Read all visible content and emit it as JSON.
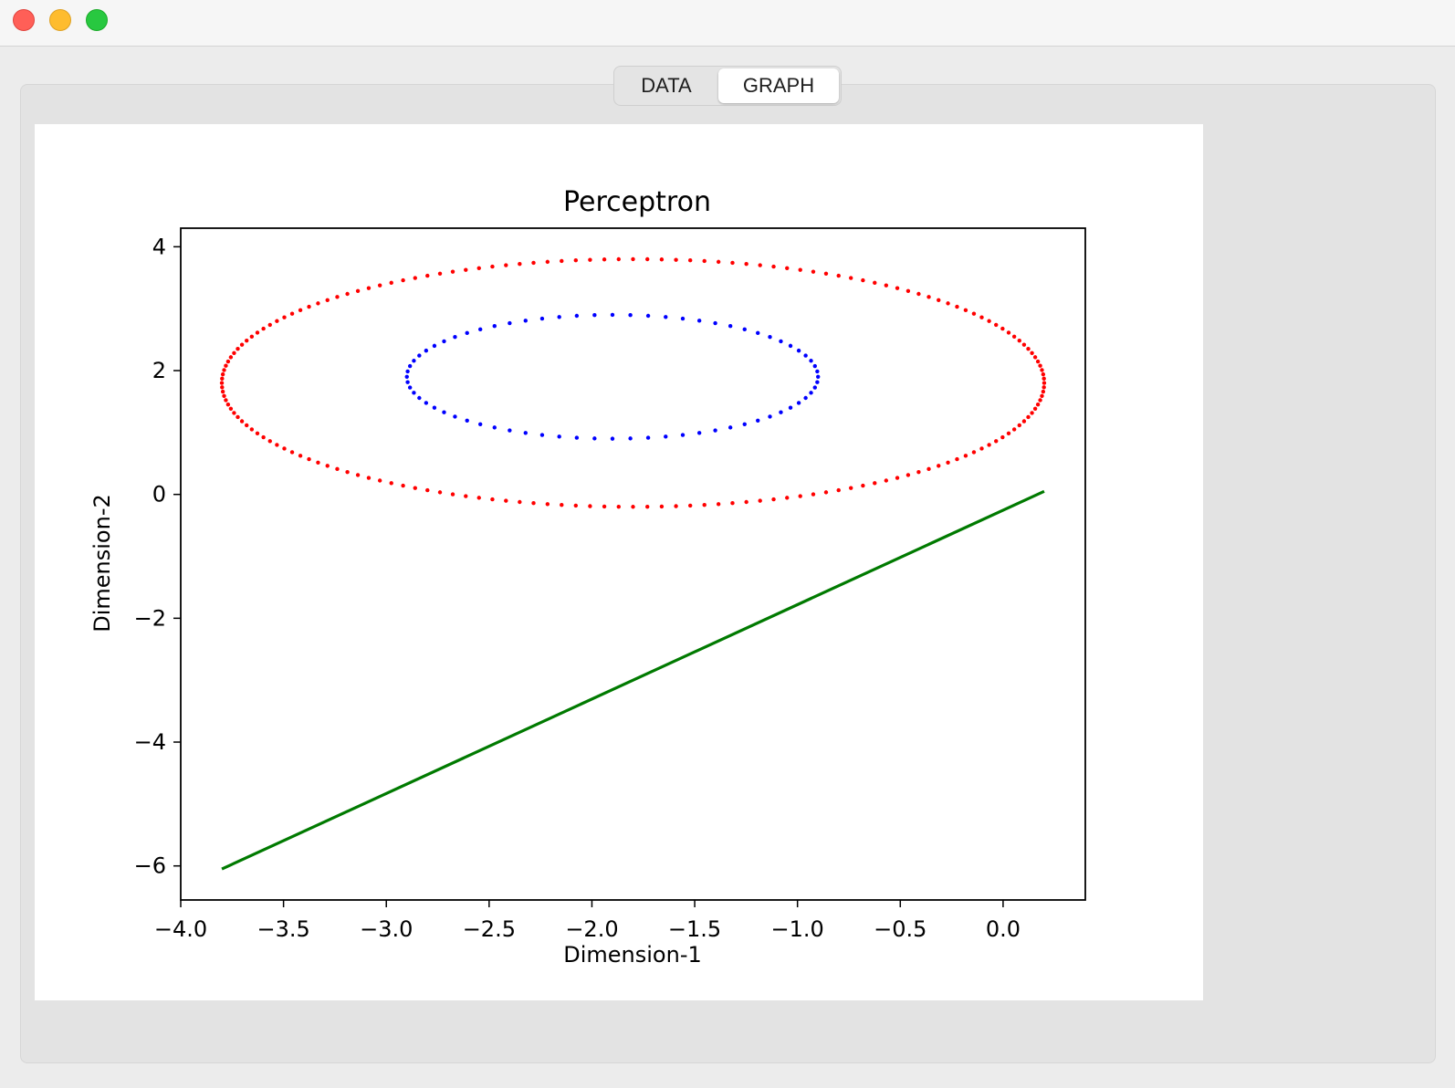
{
  "window": {
    "controls": [
      "close",
      "minimize",
      "zoom"
    ]
  },
  "tabs": [
    {
      "label": "DATA",
      "selected": false
    },
    {
      "label": "GRAPH",
      "selected": true
    }
  ],
  "chart_data": {
    "type": "scatter",
    "title": "Perceptron",
    "xlabel": "Dimension-1",
    "ylabel": "Dimension-2",
    "xlim": [
      -4.0,
      0.4
    ],
    "ylim": [
      -6.55,
      4.3
    ],
    "xticks": [
      -4.0,
      -3.5,
      -3.0,
      -2.5,
      -2.0,
      -1.5,
      -1.0,
      -0.5,
      0.0
    ],
    "xtick_labels": [
      "−4.0",
      "−3.5",
      "−3.0",
      "−2.5",
      "−2.0",
      "−1.5",
      "−1.0",
      "−0.5",
      "0.0"
    ],
    "yticks": [
      4,
      2,
      0,
      -2,
      -4,
      -6
    ],
    "ytick_labels": [
      "4",
      "2",
      "0",
      "−2",
      "−4",
      "−6"
    ],
    "grid": false,
    "series": [
      {
        "kind": "points",
        "color": "#ff0000",
        "shape": "ellipse",
        "center": [
          -1.8,
          1.8
        ],
        "radii": [
          2.0,
          2.0
        ],
        "n": 180
      },
      {
        "kind": "points",
        "color": "#0000ff",
        "shape": "ellipse",
        "center": [
          -1.9,
          1.9
        ],
        "radii": [
          1.0,
          1.0
        ],
        "n": 72
      },
      {
        "kind": "line",
        "color": "#007a00",
        "x": [
          -3.8,
          0.2
        ],
        "y": [
          -6.05,
          0.05
        ]
      }
    ]
  }
}
